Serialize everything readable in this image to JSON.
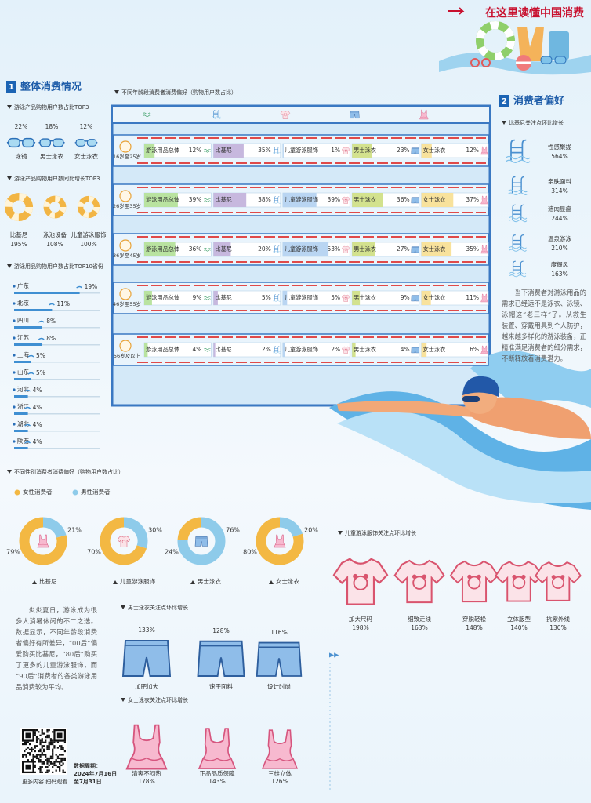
{
  "header": {
    "title": "在这里读懂中国消费"
  },
  "sections": [
    {
      "number": "1",
      "title": "整体消费情况"
    },
    {
      "number": "2",
      "title": "消费者偏好"
    }
  ],
  "paragraphs": [
    "炎炎夏日，游泳成为很多人消暑休闲的不二之选。数据显示，不同年龄段消费者偏好有所差异，“00后”偏爱购买比基尼，“80后”购买了更多的儿童游泳服饰，而“90后”消费者的各类游泳用品消费较为平均。",
    "当下消费者对游泳用品的需求已经远不是泳衣、泳镜、泳帽这“老三样”了。从救生装置、穿戴用具到个人防护，越来越多样化的游泳装备，正精准满足消费者的细分需求，不断释放着消费潜力。"
  ],
  "footer": {
    "qr_caption": "更多内容 扫码观看",
    "period": [
      "数据周期：",
      "2024年7月16日",
      "至7月31日"
    ]
  },
  "chart_data": [
    {
      "type": "icon-stat",
      "title": "游泳产品购物用户数占比TOP3",
      "categories": [
        "泳镜",
        "男士泳衣",
        "女士泳衣"
      ],
      "values": [
        22,
        18,
        12
      ],
      "value_labels": [
        "22%",
        "18%",
        "12%"
      ]
    },
    {
      "type": "icon-stat",
      "title": "游泳产品购物用户数同比增长TOP3",
      "categories": [
        "比基尼",
        "泳池设备",
        "儿童游泳服饰"
      ],
      "values": [
        195,
        108,
        100
      ],
      "value_labels": [
        "195%",
        "108%",
        "100%"
      ]
    },
    {
      "type": "bar",
      "title": "游泳用品购物用户数占比TOP10省份",
      "categories": [
        "广东",
        "北京",
        "四川",
        "江苏",
        "上海",
        "山东",
        "河北",
        "浙江",
        "湖北",
        "陕西"
      ],
      "values": [
        19,
        11,
        8,
        8,
        5,
        5,
        4,
        4,
        4,
        4
      ],
      "value_labels": [
        "19%",
        "11%",
        "8%",
        "8%",
        "5%",
        "5%",
        "4%",
        "4%",
        "4%",
        "4%"
      ],
      "color": "#3f8fd2"
    },
    {
      "type": "bar-matrix",
      "title": "不同年龄段消费者消费偏好（购物用户数占比）",
      "categories": [
        "16岁至25岁",
        "26岁至35岁",
        "36岁至45岁",
        "46岁至55岁",
        "56岁及以上"
      ],
      "series": [
        {
          "name": "游泳用品总体",
          "color": "#b9e3a0",
          "values": [
            12,
            39,
            36,
            9,
            4
          ],
          "value_labels": [
            "12%",
            "39%",
            "36%",
            "9%",
            "4%"
          ]
        },
        {
          "name": "比基尼",
          "color": "#c7b8de",
          "values": [
            35,
            38,
            20,
            5,
            2
          ],
          "value_labels": [
            "35%",
            "38%",
            "20%",
            "5%",
            "2%"
          ]
        },
        {
          "name": "儿童游泳服饰",
          "color": "#b9d5f2",
          "values": [
            1,
            39,
            53,
            5,
            2
          ],
          "value_labels": [
            "1%",
            "39%",
            "53%",
            "5%",
            "2%"
          ]
        },
        {
          "name": "男士泳衣",
          "color": "#d3e28e",
          "values": [
            23,
            36,
            27,
            9,
            4
          ],
          "value_labels": [
            "23%",
            "36%",
            "27%",
            "9%",
            "4%"
          ]
        },
        {
          "name": "女士泳衣",
          "color": "#f8e29c",
          "values": [
            12,
            37,
            35,
            11,
            6
          ],
          "value_labels": [
            "12%",
            "37%",
            "35%",
            "11%",
            "6%"
          ]
        }
      ]
    },
    {
      "type": "icon-stat",
      "title": "比基尼关注点环比增长",
      "categories": [
        "性感聚拢",
        "亲肤面料",
        "遮肉显瘦",
        "温泉游泳",
        "度假风"
      ],
      "values": [
        564,
        314,
        244,
        210,
        163
      ],
      "value_labels": [
        "564%",
        "314%",
        "244%",
        "210%",
        "163%"
      ]
    },
    {
      "type": "donut",
      "title": "不同性别消费者消费偏好（购物用户数占比）",
      "categories": [
        "比基尼",
        "儿童游泳服饰",
        "男士泳衣",
        "女士泳衣"
      ],
      "series": [
        {
          "name": "女性消费者",
          "color": "#f3b843",
          "values": [
            79,
            70,
            24,
            80
          ],
          "value_labels": [
            "79%",
            "70%",
            "24%",
            "80%"
          ]
        },
        {
          "name": "男性消费者",
          "color": "#8ecbea",
          "values": [
            21,
            30,
            76,
            20
          ],
          "value_labels": [
            "21%",
            "30%",
            "76%",
            "20%"
          ]
        }
      ]
    },
    {
      "type": "icon-stat",
      "title": "儿童游泳服饰关注点环比增长",
      "categories": [
        "加大尺码",
        "细致走线",
        "穿脱轻松",
        "立体版型",
        "抗紫外线"
      ],
      "values": [
        198,
        163,
        148,
        140,
        130
      ],
      "value_labels": [
        "198%",
        "163%",
        "148%",
        "140%",
        "130%"
      ]
    },
    {
      "type": "icon-stat",
      "title": "男士泳衣关注点环比增长",
      "categories": [
        "加肥加大",
        "速干面料",
        "设计时尚"
      ],
      "values": [
        133,
        128,
        116
      ],
      "value_labels": [
        "133%",
        "128%",
        "116%"
      ]
    },
    {
      "type": "icon-stat",
      "title": "女士泳衣关注点环比增长",
      "categories": [
        "清爽不闷热",
        "正品品质保障",
        "三维立体"
      ],
      "values": [
        178,
        143,
        126
      ],
      "value_labels": [
        "178%",
        "143%",
        "126%"
      ]
    }
  ]
}
